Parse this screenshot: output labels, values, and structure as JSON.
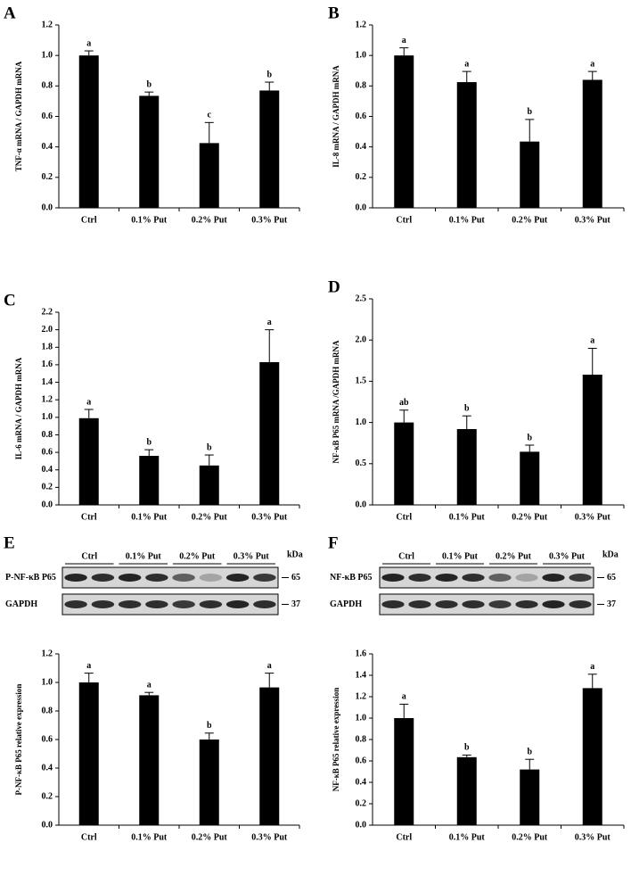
{
  "chart_data": [
    {
      "type": "bar",
      "panel": "A",
      "ylabel": "TNF-α mRNA / GAPDH mRNA",
      "categories": [
        "Ctrl",
        "0.1% Put",
        "0.2% Put",
        "0.3% Put"
      ],
      "values": [
        1.0,
        0.735,
        0.425,
        0.77
      ],
      "errors": [
        0.03,
        0.025,
        0.135,
        0.055
      ],
      "annotations": [
        "a",
        "b",
        "c",
        "b"
      ],
      "color": "#000000",
      "ylim": [
        0,
        1.2
      ],
      "yticks": [
        {
          "value": 0,
          "label": "0.0"
        },
        0.2,
        0.4,
        0.6,
        0.8,
        {
          "value": 1,
          "label": "1.0"
        },
        1.2
      ]
    },
    {
      "type": "bar",
      "panel": "B",
      "ylabel": "IL-8 mRNA / GAPDH mRNA",
      "categories": [
        "Ctrl",
        "0.1% Put",
        "0.2% Put",
        "0.3% Put"
      ],
      "values": [
        1.0,
        0.825,
        0.435,
        0.84
      ],
      "errors": [
        0.05,
        0.07,
        0.145,
        0.055
      ],
      "annotations": [
        "a",
        "a",
        "b",
        "a"
      ],
      "color": "#000000",
      "ylim": [
        0,
        1.2
      ],
      "yticks": [
        {
          "value": 0,
          "label": "0.0"
        },
        0.2,
        0.4,
        0.6,
        0.8,
        {
          "value": 1,
          "label": "1.0"
        },
        1.2
      ]
    },
    {
      "type": "bar",
      "panel": "C",
      "ylabel": "IL-6 mRNA / GAPDH mRNA",
      "categories": [
        "Ctrl",
        "0.1% Put",
        "0.2% Put",
        "0.3% Put"
      ],
      "values": [
        0.99,
        0.56,
        0.45,
        1.63
      ],
      "errors": [
        0.1,
        0.07,
        0.12,
        0.37
      ],
      "annotations": [
        "a",
        "b",
        "b",
        "a"
      ],
      "color": "#000000",
      "ylim": [
        0,
        2.2
      ],
      "yticks": [
        {
          "value": 0,
          "label": "0.0"
        },
        0.2,
        0.4,
        0.6,
        0.8,
        {
          "value": 1,
          "label": "1.0"
        },
        1.2,
        1.4,
        1.6,
        1.8,
        {
          "value": 2,
          "label": "2.0"
        },
        2.2
      ]
    },
    {
      "type": "bar",
      "panel": "D",
      "ylabel": "NF-κB P65 mRNA /GAPDH mRNA",
      "categories": [
        "Ctrl",
        "0.1% Put",
        "0.2% Put",
        "0.3% Put"
      ],
      "values": [
        1.0,
        0.92,
        0.645,
        1.58
      ],
      "errors": [
        0.15,
        0.16,
        0.08,
        0.32
      ],
      "annotations": [
        "ab",
        "b",
        "b",
        "a"
      ],
      "color": "#000000",
      "ylim": [
        0,
        2.5
      ],
      "yticks": [
        {
          "value": 0,
          "label": "0.0"
        },
        0.5,
        {
          "value": 1,
          "label": "1.0"
        },
        1.5,
        {
          "value": 2,
          "label": "2.0"
        },
        2.5
      ]
    },
    {
      "type": "bar",
      "panel": "E",
      "ylabel": "P-NF-κB P65 relative expression",
      "categories": [
        "Ctrl",
        "0.1% Put",
        "0.2% Put",
        "0.3% Put"
      ],
      "values": [
        1.0,
        0.91,
        0.6,
        0.965
      ],
      "errors": [
        0.065,
        0.02,
        0.045,
        0.1
      ],
      "annotations": [
        "a",
        "a",
        "b",
        "a"
      ],
      "color": "#000000",
      "ylim": [
        0,
        1.2
      ],
      "yticks": [
        {
          "value": 0,
          "label": "0.0"
        },
        0.2,
        0.4,
        0.6,
        0.8,
        {
          "value": 1,
          "label": "1.0"
        },
        1.2
      ],
      "blot": {
        "groups": [
          "Ctrl",
          "0.1% Put",
          "0.2% Put",
          "0.3% Put"
        ],
        "unit": "kDa",
        "rows": [
          {
            "name": "P-NF-κB P65",
            "size": "65"
          },
          {
            "name": "GAPDH",
            "size": "37"
          }
        ]
      }
    },
    {
      "type": "bar",
      "panel": "F",
      "ylabel": "NF-κB P65 relative expression",
      "categories": [
        "Ctrl",
        "0.1% Put",
        "0.2% Put",
        "0.3% Put"
      ],
      "values": [
        1.0,
        0.635,
        0.52,
        1.28
      ],
      "errors": [
        0.13,
        0.02,
        0.095,
        0.13
      ],
      "annotations": [
        "a",
        "b",
        "b",
        "a"
      ],
      "color": "#000000",
      "ylim": [
        0,
        1.6
      ],
      "yticks": [
        {
          "value": 0,
          "label": "0.0"
        },
        0.2,
        0.4,
        0.6,
        0.8,
        {
          "value": 1,
          "label": "1.0"
        },
        1.2,
        1.4,
        1.6
      ],
      "blot": {
        "groups": [
          "Ctrl",
          "0.1% Put",
          "0.2% Put",
          "0.3% Put"
        ],
        "unit": "kDa",
        "rows": [
          {
            "name": "NF-κB P65",
            "size": "65"
          },
          {
            "name": "GAPDH",
            "size": "37"
          }
        ]
      }
    }
  ]
}
